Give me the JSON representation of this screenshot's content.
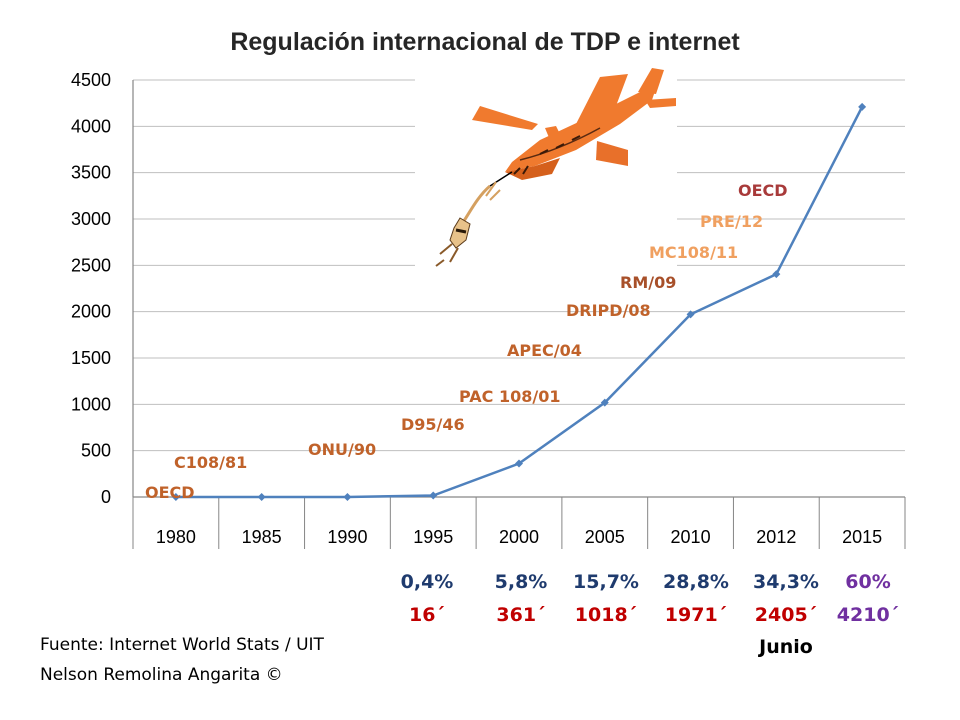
{
  "chart_data": {
    "type": "line",
    "title": "Regulación internacional de TDP e internet",
    "categories": [
      "1980",
      "1985",
      "1990",
      "1995",
      "2000",
      "2005",
      "2010",
      "2012",
      "2015"
    ],
    "series": [
      {
        "values": [
          0,
          0,
          0,
          16,
          361,
          1018,
          1971,
          2405,
          4210
        ],
        "color": "#4f81bd"
      }
    ],
    "ylim": [
      0,
      4500
    ],
    "yticks": [
      0,
      500,
      1000,
      1500,
      2000,
      2500,
      3000,
      3500,
      4000,
      4500
    ],
    "grid": true,
    "regulations": [
      {
        "label": "OECD",
        "color": "#c0622a"
      },
      {
        "label": "C108/81",
        "color": "#c0622a"
      },
      {
        "label": "ONU/90",
        "color": "#c0622a"
      },
      {
        "label": "D95/46",
        "color": "#c0622a"
      },
      {
        "label": "PAC 108/01",
        "color": "#c0622a"
      },
      {
        "label": "APEC/04",
        "color": "#c0622a"
      },
      {
        "label": "DRIPD/08",
        "color": "#c0622a"
      },
      {
        "label": "RM/09",
        "color": "#a8502a"
      },
      {
        "label": "MC108/11",
        "color": "#f0a060"
      },
      {
        "label": "PRE/12",
        "color": "#f0a060"
      },
      {
        "label": "OECD",
        "color": "#a83a3a"
      }
    ],
    "annotations": [
      {
        "pct": "0,4%",
        "value": "16´",
        "pct_color": "#1f3b6e",
        "value_color": "#c00000"
      },
      {
        "pct": "5,8%",
        "value": "361´",
        "pct_color": "#1f3b6e",
        "value_color": "#c00000"
      },
      {
        "pct": "15,7%",
        "value": "1018´",
        "pct_color": "#1f3b6e",
        "value_color": "#c00000"
      },
      {
        "pct": "28,8%",
        "value": "1971´",
        "pct_color": "#1f3b6e",
        "value_color": "#c00000"
      },
      {
        "pct": "34,3%",
        "value": "2405´",
        "pct_color": "#1f3b6e",
        "value_color": "#c00000",
        "note": "Junio"
      },
      {
        "pct": "60%",
        "value": "4210´",
        "pct_color": "#7030a0",
        "value_color": "#7030a0"
      }
    ]
  },
  "source": {
    "line1": "Fuente:  Internet World Stats / UIT",
    "line2": "Nelson Remolina Angarita ©"
  },
  "colors": {
    "grid": "#bfbfbf",
    "axis": "#868686",
    "plane": "#f07a2e",
    "plane_dark": "#d5601c"
  },
  "icons": {
    "airplane": "airplane-icon",
    "parachutist": "parachutist-icon"
  }
}
